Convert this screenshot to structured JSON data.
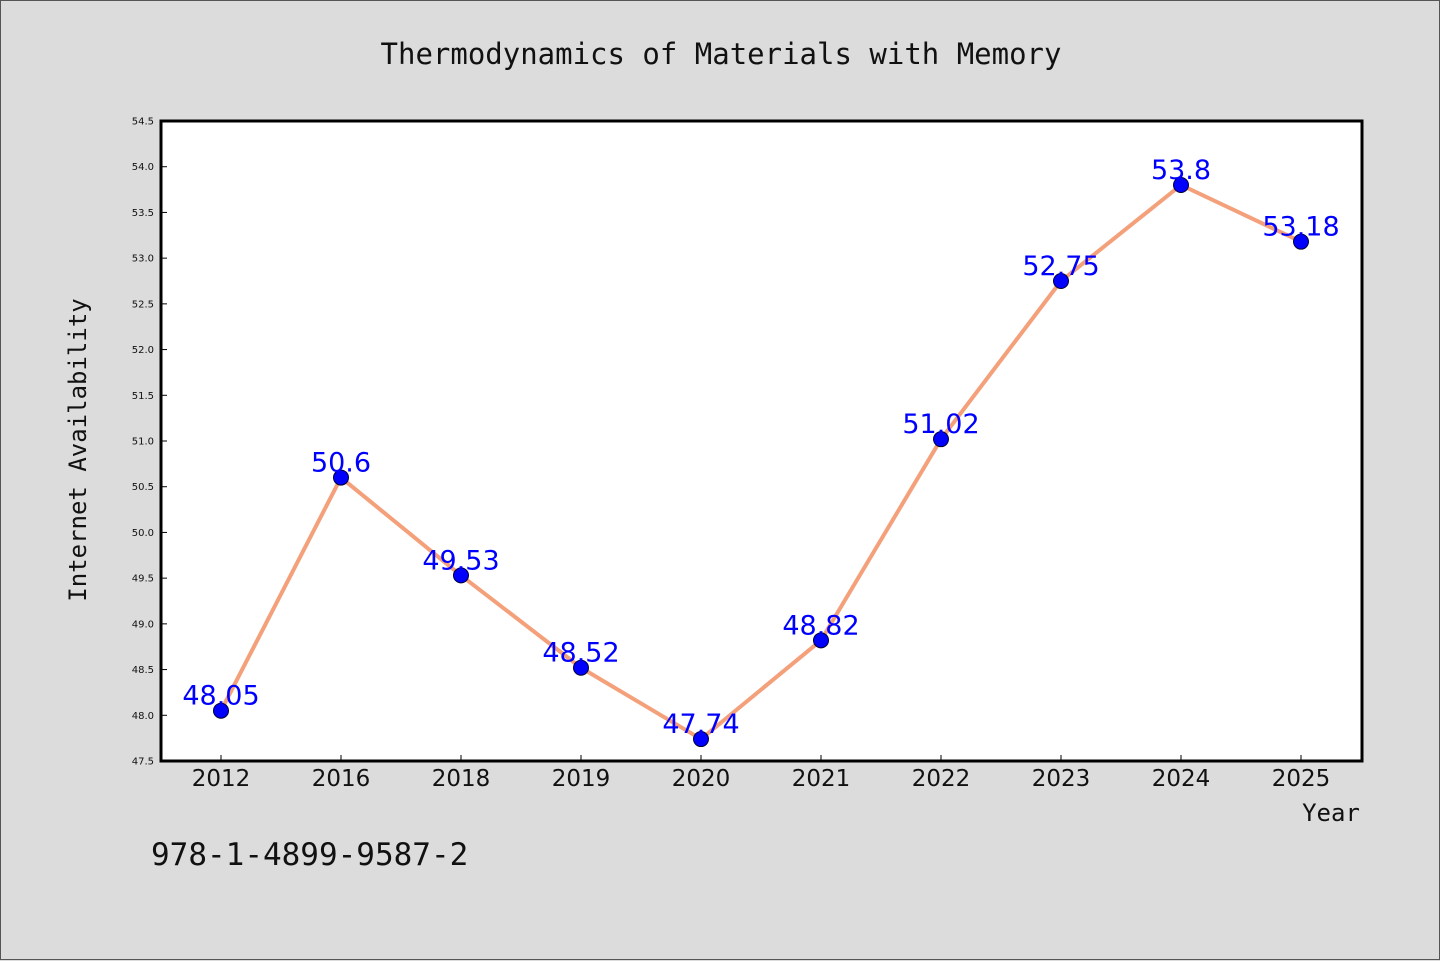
{
  "chart_data": {
    "type": "line",
    "title": "Thermodynamics of Materials with Memory",
    "xlabel": "Year",
    "ylabel": "Internet Availability",
    "categories": [
      "2012",
      "2016",
      "2018",
      "2019",
      "2020",
      "2021",
      "2022",
      "2023",
      "2024",
      "2025"
    ],
    "series": [
      {
        "values": [
          48.05,
          50.6,
          49.53,
          48.52,
          47.74,
          48.82,
          51.02,
          52.75,
          53.8,
          53.18
        ]
      }
    ],
    "data_labels": [
      "48.05",
      "50.6",
      "49.53",
      "48.52",
      "47.74",
      "48.82",
      "51.02",
      "52.75",
      "53.8",
      "53.18"
    ],
    "ylim": [
      47.5,
      54.5
    ],
    "yticks": [
      "47.5",
      "48.0",
      "48.5",
      "49.0",
      "49.5",
      "50.0",
      "50.5",
      "51.0",
      "51.5",
      "52.0",
      "52.5",
      "53.0",
      "53.5",
      "54.0",
      "54.5"
    ],
    "grid": false,
    "line_color": "#f4a07a",
    "marker_color": "#0000ff",
    "label_color": "#0000ff"
  },
  "footer_text": "978-1-4899-9587-2"
}
